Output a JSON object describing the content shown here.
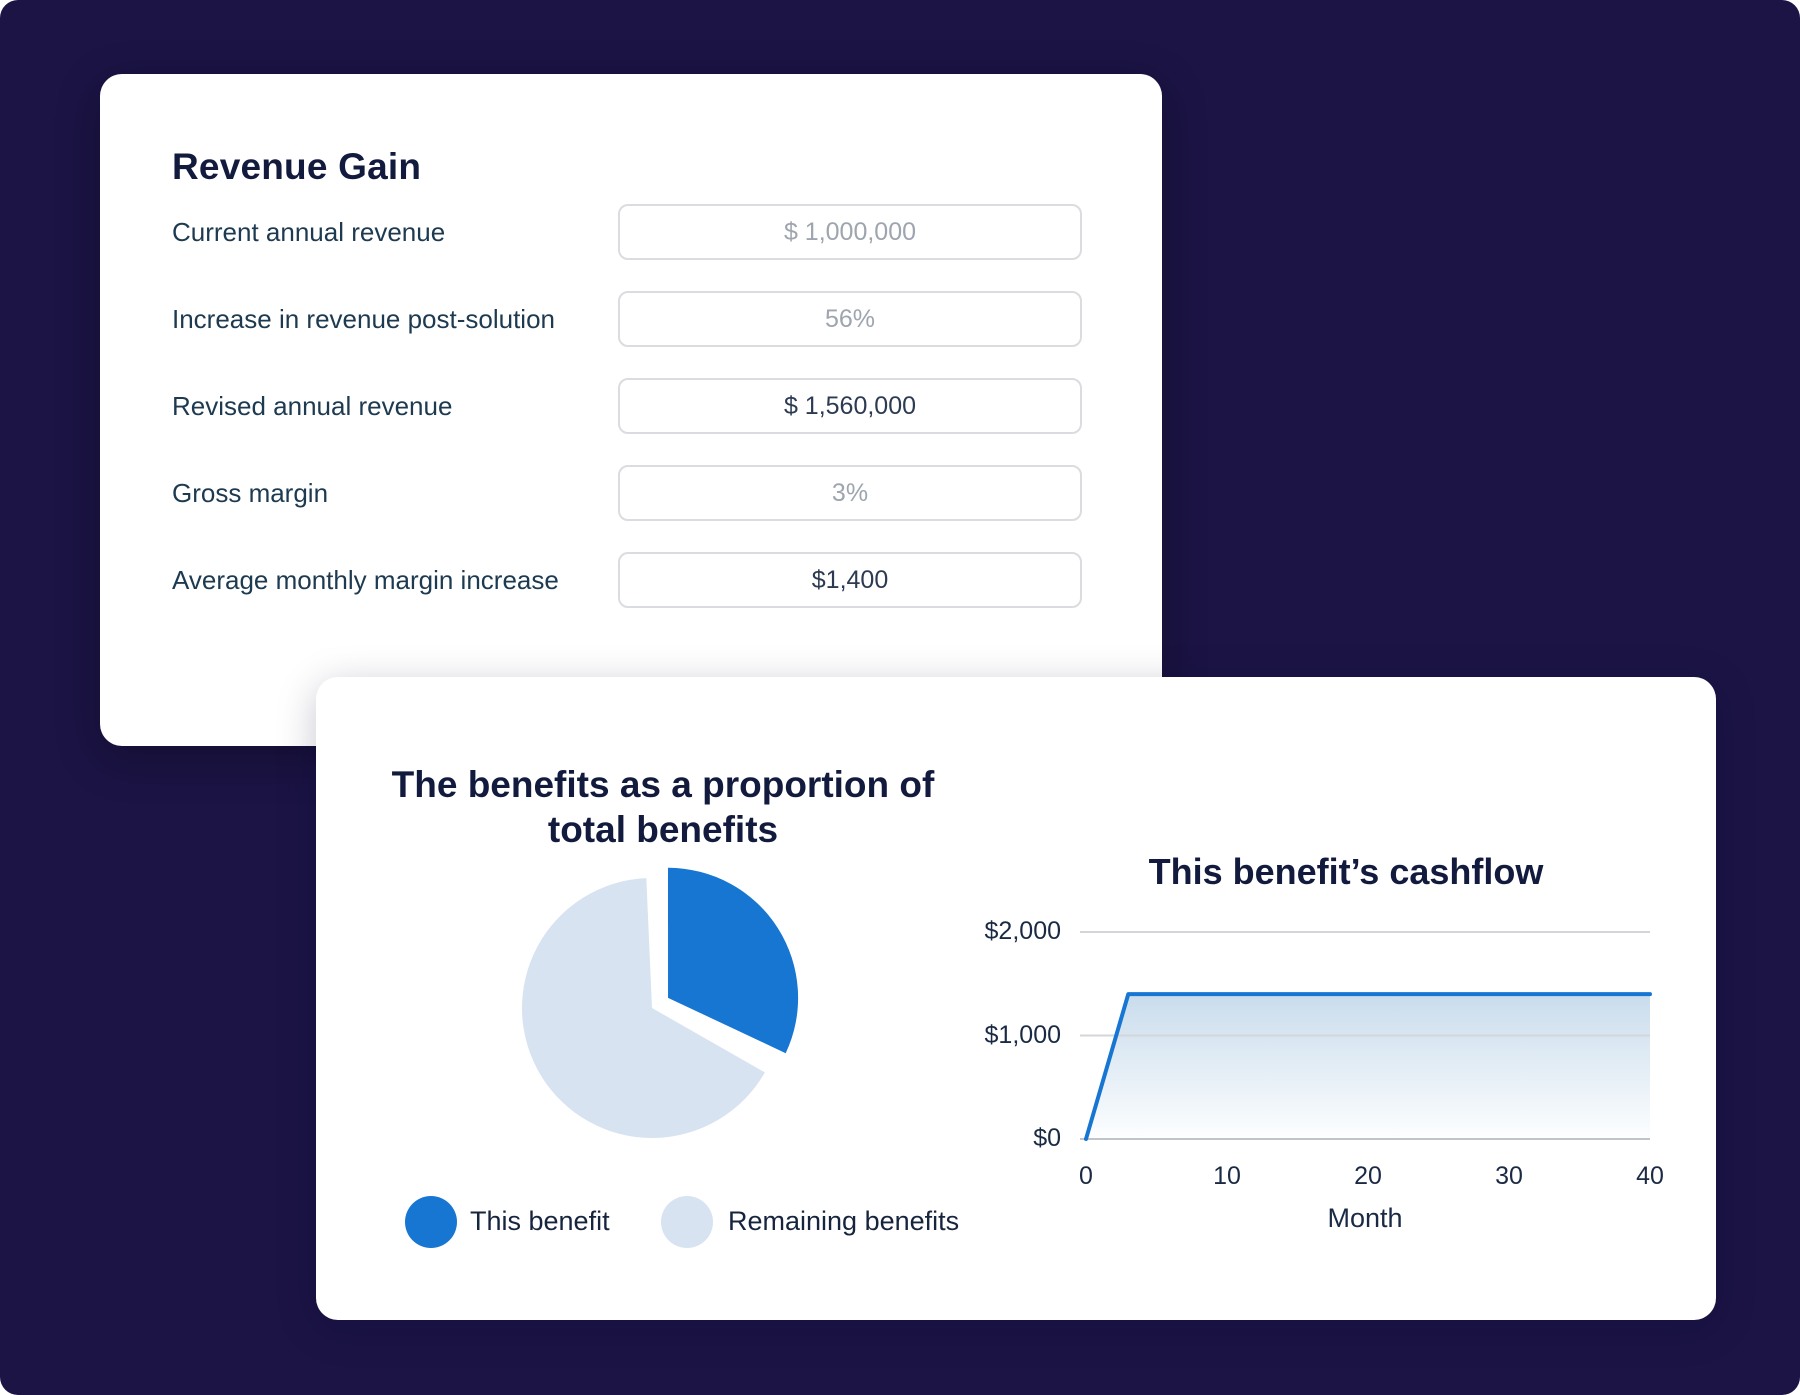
{
  "theme": {
    "background": "#1B1445",
    "card_background": "#FFFFFF",
    "heading_color": "#121B3D",
    "label_color": "#1D3A50",
    "muted_value_color": "#9EA5AE",
    "value_color": "#2C3B52",
    "accent_blue": "#1776D2",
    "light_blue": "#D7E3F0"
  },
  "revenue_card": {
    "title": "Revenue Gain",
    "fields": [
      {
        "label": "Current annual revenue",
        "value": "$ 1,000,000",
        "is_placeholder": true
      },
      {
        "label": "Increase in revenue post-solution",
        "value": "56%",
        "is_placeholder": true
      },
      {
        "label": "Revised annual revenue",
        "value": "$ 1,560,000",
        "is_placeholder": false
      },
      {
        "label": "Gross margin",
        "value": "3%",
        "is_placeholder": true
      },
      {
        "label": "Average monthly margin increase",
        "value": "$1,400",
        "is_placeholder": false
      }
    ]
  },
  "chart_data": [
    {
      "type": "pie",
      "title": "The benefits as a proportion of total benefits",
      "labels": [
        "This benefit",
        "Remaining benefits"
      ],
      "values": [
        32,
        68
      ],
      "unit": "percent",
      "colors": [
        "#1776D2",
        "#D7E3F0"
      ],
      "exploded_slice": "This benefit",
      "legend_position": "bottom"
    },
    {
      "type": "area",
      "title": "This benefit’s cashflow",
      "xlabel": "Month",
      "x": [
        0,
        3,
        40
      ],
      "y": [
        0,
        1400,
        1400
      ],
      "xticks": [
        0,
        10,
        20,
        30,
        40
      ],
      "yticks": [
        {
          "label": "$0",
          "value": 0
        },
        {
          "label": "$1,000",
          "value": 1000
        },
        {
          "label": "$2,000",
          "value": 2000
        }
      ],
      "xlim": [
        0,
        40
      ],
      "ylim": [
        0,
        2000
      ],
      "grid": true,
      "line_color": "#1776D2",
      "area_fill_top": "#C9DCEC",
      "area_fill_bottom": "#FDFEFF"
    }
  ]
}
